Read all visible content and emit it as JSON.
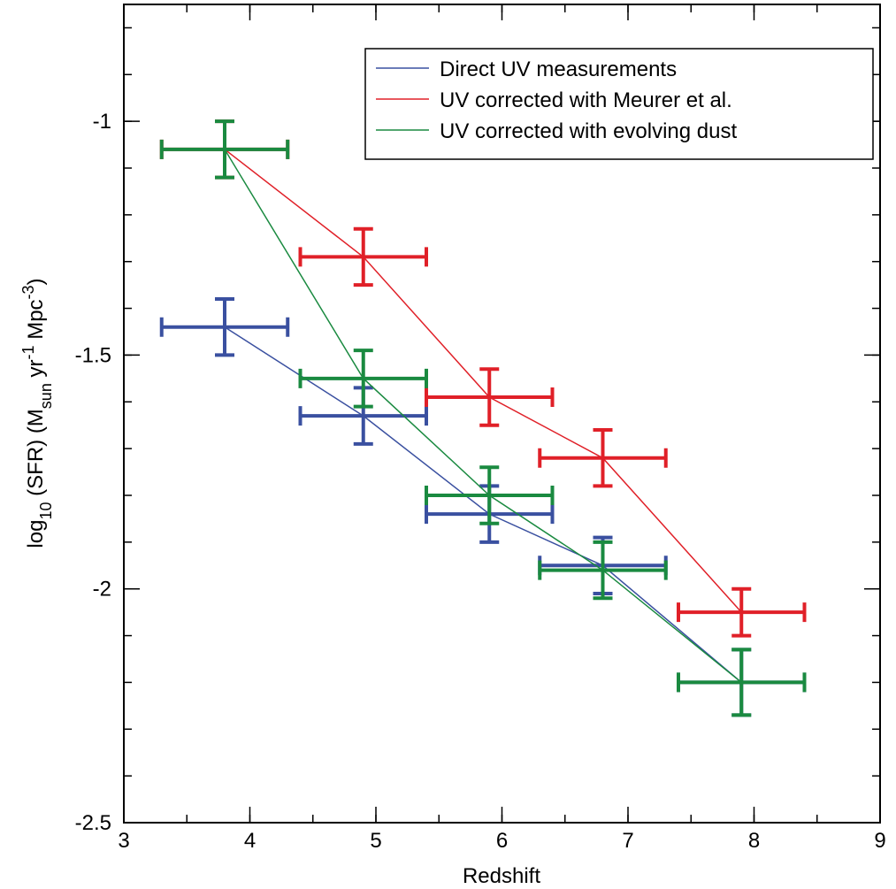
{
  "chart_data": {
    "type": "errorbar",
    "x_label": "Redshift",
    "y_label": [
      "log",
      "10",
      " (SFR) (M",
      "sun",
      " yr",
      "-1",
      " Mpc",
      "-3",
      ")"
    ],
    "y_label_shifts": [
      "none",
      "sub",
      "none",
      "sub",
      "none",
      "super",
      "none",
      "super",
      "none"
    ],
    "x": [
      3.8,
      4.9,
      5.9,
      6.8,
      7.9
    ],
    "series": [
      {
        "name": "Direct UV measurements",
        "color": "#3a50a0",
        "values": [
          -1.44,
          -1.63,
          -1.84,
          -1.95,
          -2.2
        ],
        "yerr": [
          0.06,
          0.06,
          0.06,
          0.06,
          0.07
        ],
        "xerr": [
          0.5,
          0.5,
          0.5,
          0.5,
          0.5
        ]
      },
      {
        "name": "UV corrected with Meurer et al.",
        "color": "#e02028",
        "values": [
          -1.06,
          -1.29,
          -1.59,
          -1.72,
          -2.05
        ],
        "yerr": [
          0.06,
          0.06,
          0.06,
          0.06,
          0.05
        ],
        "xerr": [
          0.5,
          0.5,
          0.5,
          0.5,
          0.5
        ]
      },
      {
        "name": "UV corrected with evolving dust",
        "color": "#1a8a40",
        "values": [
          -1.06,
          -1.55,
          -1.8,
          -1.96,
          -2.2
        ],
        "yerr": [
          0.06,
          0.06,
          0.06,
          0.06,
          0.07
        ],
        "xerr": [
          0.5,
          0.5,
          0.5,
          0.5,
          0.5
        ]
      }
    ],
    "xlim": [
      3,
      9
    ],
    "ylim": [
      -2.5,
      -0.75
    ],
    "xticks": [
      3,
      4,
      5,
      6,
      7,
      8,
      9
    ],
    "yticks": [
      -2.5,
      -2,
      -1.5,
      -1
    ],
    "xminor_step": 0.5,
    "yminor_step": 0.1,
    "legend": "upper right"
  }
}
